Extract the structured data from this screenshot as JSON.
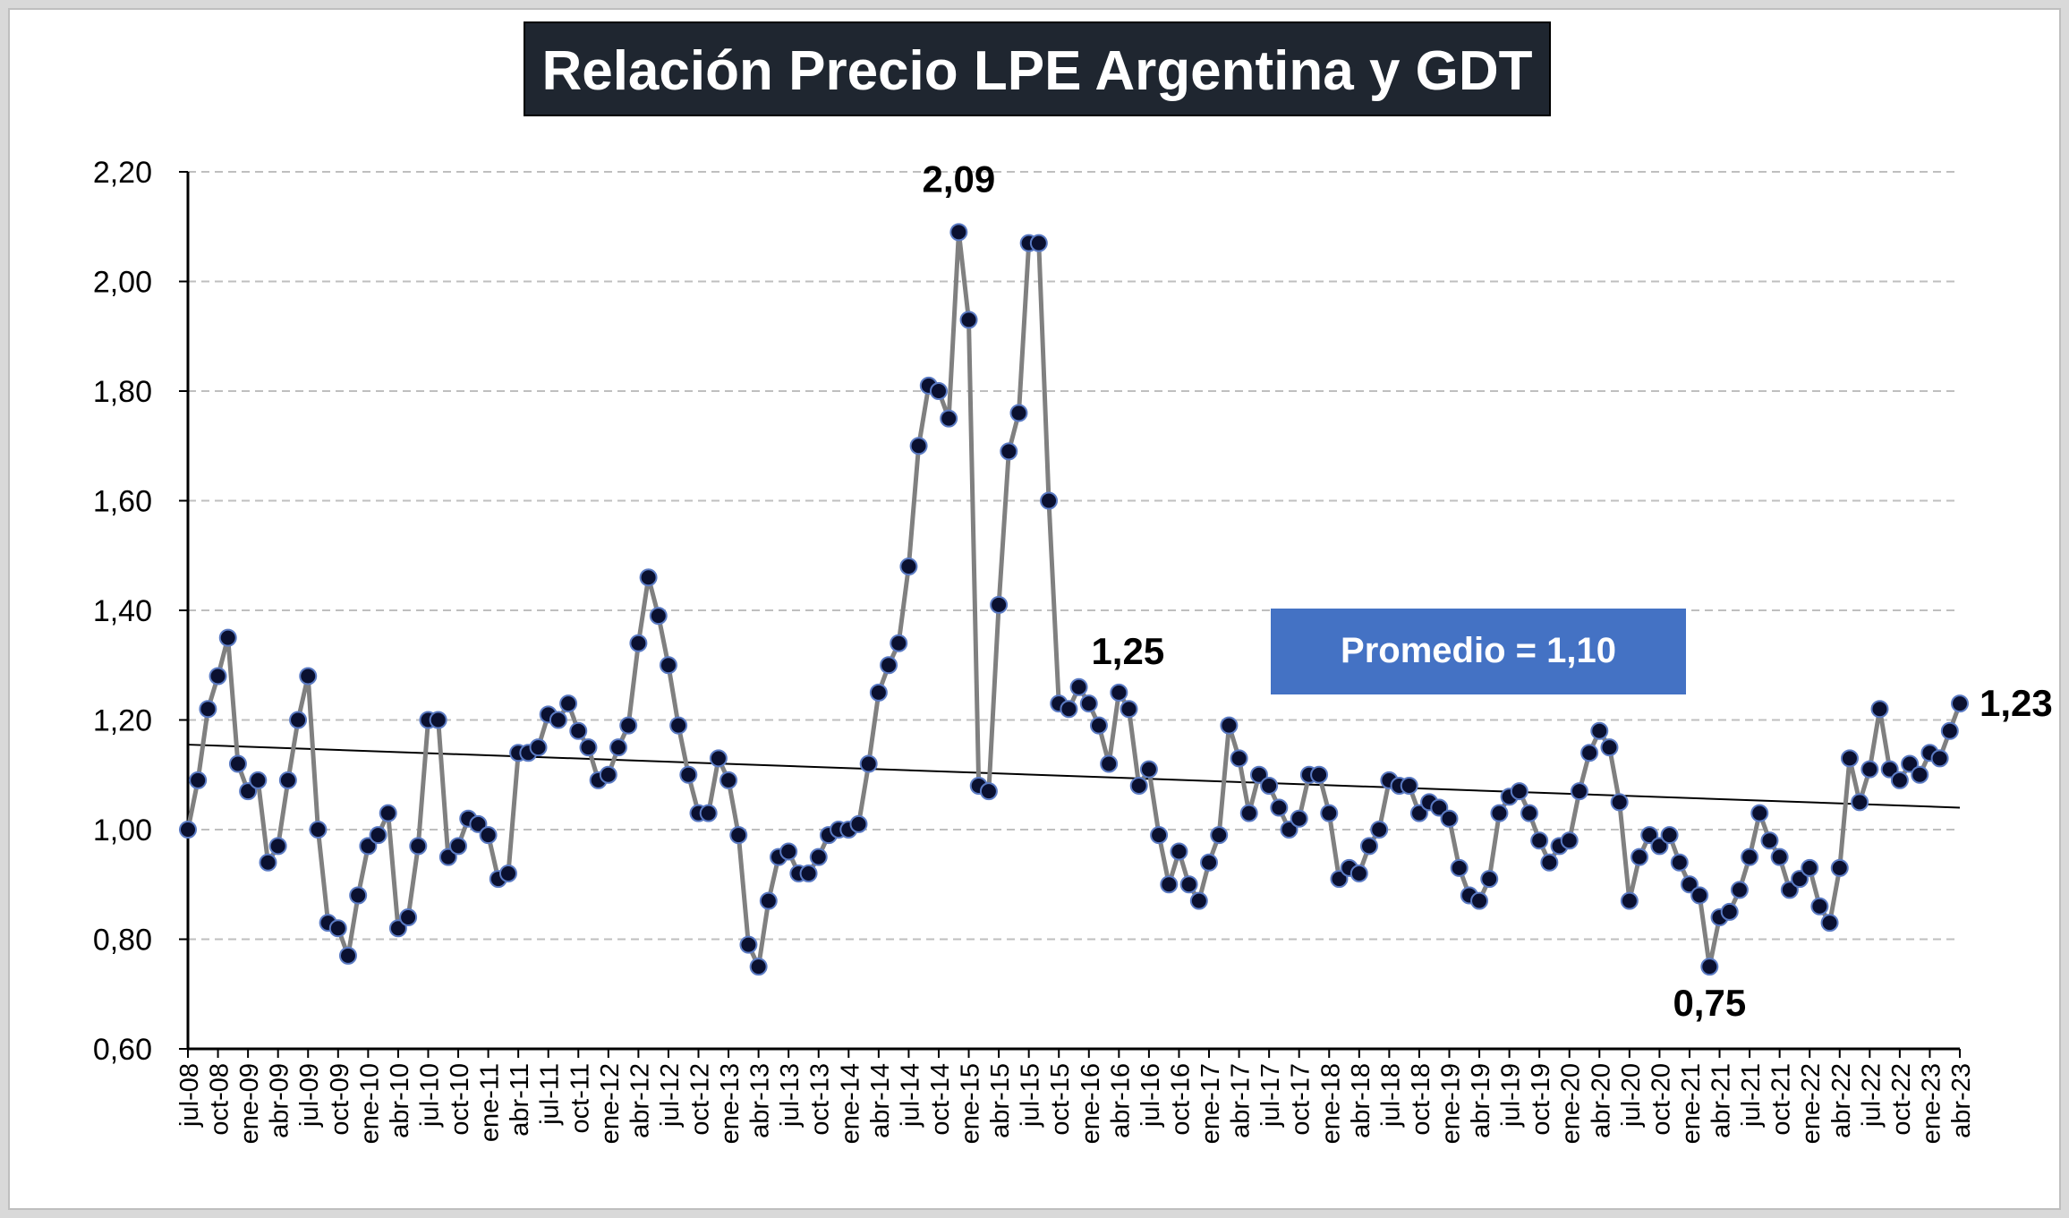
{
  "chart_data": {
    "type": "line",
    "title": "Relación Precio LPE Argentina y GDT",
    "xlabel": "",
    "ylabel": "",
    "ylim": [
      0.6,
      2.2
    ],
    "yticks": [
      "0,60",
      "0,80",
      "1,00",
      "1,20",
      "1,40",
      "1,60",
      "1,80",
      "2,00",
      "2,20"
    ],
    "grid": "horizontal dashed",
    "start_month": "2008-07",
    "x_tick_labels": [
      "jul-08",
      "oct-08",
      "ene-09",
      "abr-09",
      "jul-09",
      "oct-09",
      "ene-10",
      "abr-10",
      "jul-10",
      "oct-10",
      "ene-11",
      "abr-11",
      "jul-11",
      "oct-11",
      "ene-12",
      "abr-12",
      "jul-12",
      "oct-12",
      "ene-13",
      "abr-13",
      "jul-13",
      "oct-13",
      "ene-14",
      "abr-14",
      "jul-14",
      "oct-14",
      "ene-15",
      "abr-15",
      "jul-15",
      "oct-15",
      "ene-16",
      "abr-16",
      "jul-16",
      "oct-16",
      "ene-17",
      "abr-17",
      "jul-17",
      "oct-17",
      "ene-18",
      "abr-18",
      "jul-18",
      "oct-18",
      "ene-19",
      "abr-19",
      "jul-19",
      "oct-19",
      "ene-20",
      "abr-20",
      "jul-20",
      "oct-20",
      "ene-21",
      "abr-21",
      "jul-21",
      "oct-21",
      "ene-22",
      "abr-22",
      "jul-22",
      "oct-22",
      "ene-23",
      "abr-23"
    ],
    "series": [
      {
        "values": [
          1.0,
          1.09,
          1.22,
          1.28,
          1.35,
          1.12,
          1.07,
          1.09,
          0.94,
          0.97,
          1.09,
          1.2,
          1.28,
          1.0,
          0.83,
          0.82,
          0.77,
          0.88,
          0.97,
          0.99,
          1.03,
          0.82,
          0.84,
          0.97,
          1.2,
          1.2,
          0.95,
          0.97,
          1.02,
          1.01,
          0.99,
          0.91,
          0.92,
          1.14,
          1.14,
          1.15,
          1.21,
          1.2,
          1.23,
          1.18,
          1.15,
          1.09,
          1.1,
          1.15,
          1.19,
          1.34,
          1.46,
          1.39,
          1.3,
          1.19,
          1.1,
          1.03,
          1.03,
          1.13,
          1.09,
          0.99,
          0.79,
          0.75,
          0.87,
          0.95,
          0.96,
          0.92,
          0.92,
          0.95,
          0.99,
          1.0,
          1.0,
          1.01,
          1.12,
          1.25,
          1.3,
          1.34,
          1.48,
          1.7,
          1.81,
          1.8,
          1.75,
          2.09,
          1.93,
          1.08,
          1.07,
          1.41,
          1.69,
          1.76,
          2.07,
          2.07,
          1.6,
          1.23,
          1.22,
          1.26,
          1.23,
          1.19,
          1.12,
          1.25,
          1.22,
          1.08,
          1.11,
          0.99,
          0.9,
          0.96,
          0.9,
          0.87,
          0.94,
          0.99,
          1.19,
          1.13,
          1.03,
          1.1,
          1.08,
          1.04,
          1.0,
          1.02,
          1.1,
          1.1,
          1.03,
          0.91,
          0.93,
          0.92,
          0.97,
          1.0,
          1.09,
          1.08,
          1.08,
          1.03,
          1.05,
          1.04,
          1.02,
          0.93,
          0.88,
          0.87,
          0.91,
          1.03,
          1.06,
          1.07,
          1.03,
          0.98,
          0.94,
          0.97,
          0.98,
          1.07,
          1.14,
          1.18,
          1.15,
          1.05,
          0.87,
          0.95,
          0.99,
          0.97,
          0.99,
          0.94,
          0.9,
          0.88,
          0.75,
          0.84,
          0.85,
          0.89,
          0.95,
          1.03,
          0.98,
          0.95,
          0.89,
          0.91,
          0.93,
          0.86,
          0.83,
          0.93,
          1.13,
          1.05,
          1.11,
          1.22,
          1.11,
          1.09,
          1.12,
          1.1,
          1.14,
          1.13,
          1.18,
          1.23
        ]
      }
    ],
    "trendline": {
      "start": 1.155,
      "end": 1.04
    },
    "annotations": [
      {
        "label": "2,09",
        "index": 77
      },
      {
        "label": "1,25",
        "index": 93
      },
      {
        "label": "0,75",
        "index": 152
      },
      {
        "label": "1,23",
        "index": 177
      }
    ],
    "legend_box": {
      "text": "Promedio = 1,10",
      "color": "#4472c4"
    },
    "colors": {
      "line": "#808080",
      "marker_fill": "#0a1030",
      "marker_stroke": "#5b7bc4",
      "title_bg": "#1f2630",
      "title_text": "#ffffff",
      "trendline": "#000000"
    }
  }
}
